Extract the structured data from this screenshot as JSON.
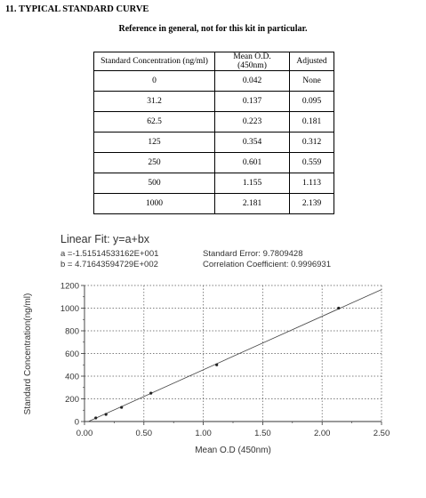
{
  "section": {
    "heading": "11. TYPICAL STANDARD CURVE",
    "note": "Reference in general, not for this kit in particular."
  },
  "table": {
    "headers": [
      "Standard Concentration (ng/ml)",
      "Mean O.D.(450nm)",
      "Adjusted"
    ],
    "rows": [
      [
        "0",
        "0.042",
        "None"
      ],
      [
        "31.2",
        "0.137",
        "0.095"
      ],
      [
        "62.5",
        "0.223",
        "0.181"
      ],
      [
        "125",
        "0.354",
        "0.312"
      ],
      [
        "250",
        "0.601",
        "0.559"
      ],
      [
        "500",
        "1.155",
        "1.113"
      ],
      [
        "1000",
        "2.181",
        "2.139"
      ]
    ]
  },
  "fit": {
    "title": "Linear Fit: y=a+bx",
    "a": "a =-1.51514533162E+001",
    "b": "b = 4.71643594729E+002",
    "std_error": "Standard Error: 9.7809428",
    "correlation": "Correlation Coefficient: 0.9996931"
  },
  "chart_data": {
    "type": "scatter",
    "xlabel": "Mean O.D (450nm)",
    "ylabel": "Standard Concentration(ng/ml)",
    "xlim": [
      0,
      2.5
    ],
    "ylim": [
      0,
      1200
    ],
    "xticks": [
      "0.00",
      "0.50",
      "1.00",
      "1.50",
      "2.00",
      "2.50"
    ],
    "yticks": [
      "0",
      "200",
      "400",
      "600",
      "800",
      "1000",
      "1200"
    ],
    "grid": true,
    "points": [
      {
        "x": 0.095,
        "y": 31.2
      },
      {
        "x": 0.181,
        "y": 62.5
      },
      {
        "x": 0.312,
        "y": 125
      },
      {
        "x": 0.559,
        "y": 250
      },
      {
        "x": 1.113,
        "y": 500
      },
      {
        "x": 2.139,
        "y": 1000
      }
    ],
    "fit_line": {
      "intercept": -15.1514533162,
      "slope": 471.643594729
    }
  }
}
